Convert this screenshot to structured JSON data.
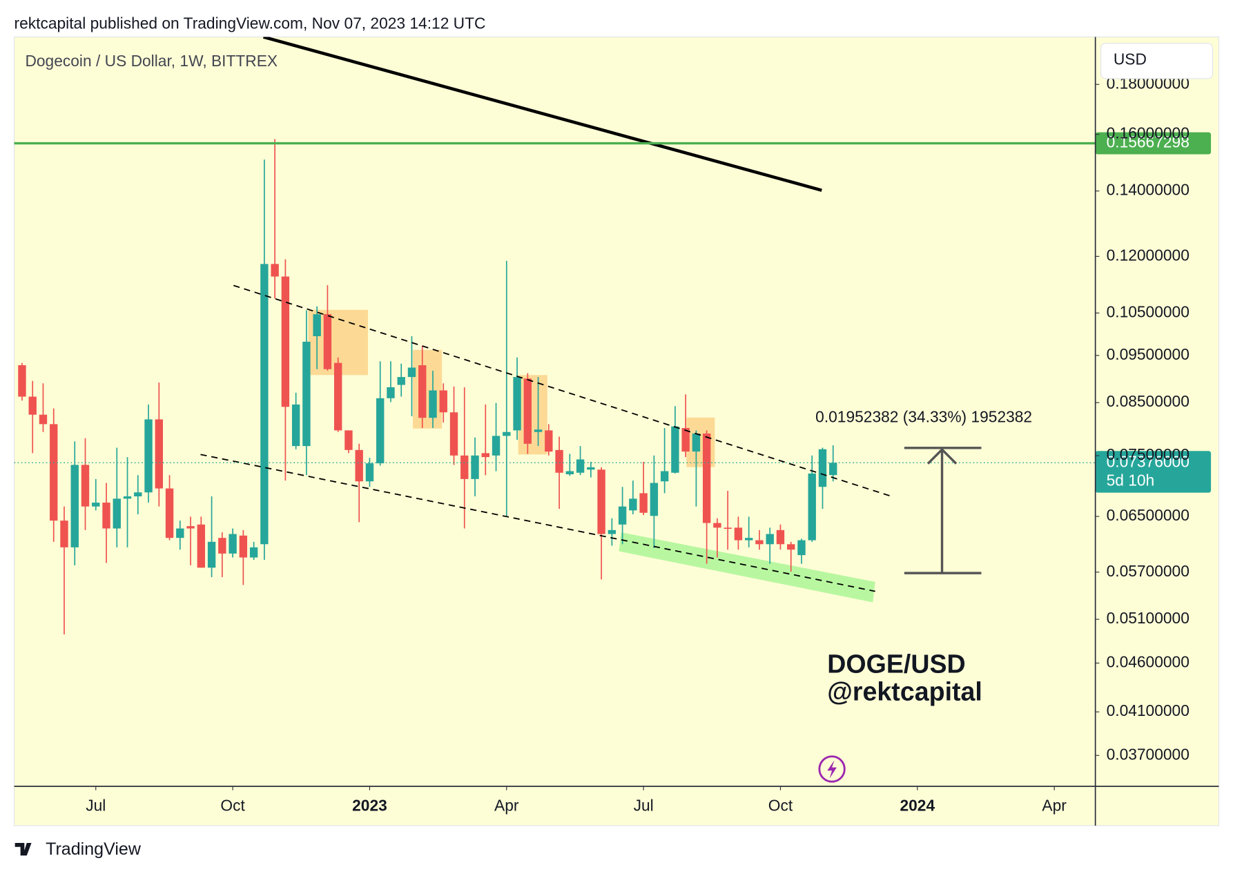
{
  "chart_data": {
    "type": "candlestick",
    "header": "rektcapital published on TradingView.com, Nov 07, 2023 14:12 UTC",
    "title": "Dogecoin / US Dollar, 1W, BITTREX",
    "currency": "USD",
    "log_scale": true,
    "grid": false,
    "up_color": "#26a69a",
    "down_color": "#ef5350",
    "xlim": [
      -0.75,
      101.9
    ],
    "xticks": [
      {
        "value": 7,
        "label": "Jul"
      },
      {
        "value": 20,
        "label": "Oct"
      },
      {
        "value": 33,
        "label": "2023"
      },
      {
        "value": 46,
        "label": "Apr"
      },
      {
        "value": 59,
        "label": "Jul"
      },
      {
        "value": 72,
        "label": "Oct"
      },
      {
        "value": 85,
        "label": "2024"
      },
      {
        "value": 98,
        "label": "Apr"
      }
    ],
    "ylim": [
      0.0344,
      0.2013
    ],
    "yticks": [
      {
        "value": 0.18,
        "label": "0.18000000"
      },
      {
        "value": 0.16,
        "label": "0.16000000"
      },
      {
        "value": 0.14,
        "label": "0.14000000"
      },
      {
        "value": 0.12,
        "label": "0.12000000"
      },
      {
        "value": 0.105,
        "label": "0.10500000"
      },
      {
        "value": 0.095,
        "label": "0.09500000"
      },
      {
        "value": 0.085,
        "label": "0.08500000"
      },
      {
        "value": 0.075,
        "label": "0.07500000"
      },
      {
        "value": 0.065,
        "label": "0.06500000"
      },
      {
        "value": 0.057,
        "label": "0.05700000"
      },
      {
        "value": 0.051,
        "label": "0.05100000"
      },
      {
        "value": 0.046,
        "label": "0.04600000"
      },
      {
        "value": 0.041,
        "label": "0.04100000"
      },
      {
        "value": 0.037,
        "label": "0.03700000"
      }
    ],
    "open": [
      0.09284,
      0.08621,
      0.08262,
      0.0808,
      0.06436,
      0.06043,
      0.0734,
      0.06654,
      0.06715,
      0.06318,
      0.06778,
      0.06815,
      0.06879,
      0.08171,
      0.06943,
      0.06179,
      0.06353,
      0.06377,
      0.0576,
      0.06179,
      0.05955,
      0.06213,
      0.059,
      0.06088,
      0.11787,
      0.11443,
      0.07673,
      0.07673,
      0.09941,
      0.1047,
      0.09335,
      0.07962,
      0.07602,
      0.0706,
      0.07367,
      0.08589,
      0.08863,
      0.09029,
      0.09284,
      0.08201,
      0.08749,
      0.08308,
      0.07504,
      0.07099,
      0.07546,
      0.07504,
      0.07859,
      0.07962,
      0.08996,
      0.07932,
      0.07962,
      0.07602,
      0.07179,
      0.07205,
      0.07258,
      0.07258,
      0.06236,
      0.06377,
      0.06593,
      0.06866,
      0.06508,
      0.0706,
      0.07205,
      0.08006,
      0.07574,
      0.07903,
      0.064,
      0.0633,
      0.0633,
      0.06145,
      0.06145,
      0.06088,
      0.06294,
      0.06088,
      0.05933,
      0.06145,
      0.06969,
      0.07165
    ],
    "high": [
      0.09335,
      0.08946,
      0.08896,
      0.08385,
      0.06654,
      0.07758,
      0.07816,
      0.07099,
      0.07034,
      0.07644,
      0.07476,
      0.07165,
      0.08463,
      0.08913,
      0.07165,
      0.06436,
      0.06496,
      0.06496,
      0.06815,
      0.0626,
      0.06318,
      0.06294,
      0.06122,
      0.15077,
      0.1582,
      0.11918,
      0.08701,
      0.10567,
      0.10666,
      0.11212,
      0.09456,
      0.07962,
      0.07715,
      0.07463,
      0.09369,
      0.09369,
      0.09318,
      0.09941,
      0.09723,
      0.09164,
      0.08896,
      0.0883,
      0.08814,
      0.0783,
      0.08463,
      0.08494,
      0.11874,
      0.09456,
      0.09113,
      0.09029,
      0.0808,
      0.07845,
      0.07532,
      0.07673,
      0.07394,
      0.07299,
      0.06472,
      0.06969,
      0.07073,
      0.07394,
      0.07504,
      0.08006,
      0.08431,
      0.08668,
      0.07962,
      0.07962,
      0.06472,
      0.06904,
      0.06496,
      0.06496,
      0.06294,
      0.0633,
      0.06377,
      0.06122,
      0.06168,
      0.07504,
      0.07644,
      0.07687
    ],
    "low": [
      0.08541,
      0.07546,
      0.07932,
      0.06122,
      0.04921,
      0.05792,
      0.06294,
      0.06593,
      0.05824,
      0.06043,
      0.06043,
      0.06532,
      0.06715,
      0.06654,
      0.06145,
      0.0601,
      0.05792,
      0.0576,
      0.05633,
      0.05633,
      0.059,
      0.0553,
      0.05867,
      0.05867,
      0.10864,
      0.07073,
      0.07616,
      0.07165,
      0.09198,
      0.09164,
      0.07932,
      0.07546,
      0.06412,
      0.06969,
      0.07326,
      0.0851,
      0.08621,
      0.08232,
      0.08006,
      0.08006,
      0.0811,
      0.0734,
      0.06318,
      0.06815,
      0.07165,
      0.07232,
      0.06508,
      0.07787,
      0.07532,
      0.07673,
      0.07504,
      0.06617,
      0.07152,
      0.07165,
      0.07126,
      0.05602,
      0.06066,
      0.06088,
      0.06532,
      0.0652,
      0.06032,
      0.06866,
      0.07192,
      0.07476,
      0.06654,
      0.05813,
      0.059,
      0.0601,
      0.0601,
      0.06043,
      0.0601,
      0.05813,
      0.0601,
      0.05707,
      0.05813,
      0.06122,
      0.06617,
      0.0706
    ],
    "close": [
      0.08621,
      0.08262,
      0.0808,
      0.06436,
      0.06043,
      0.0734,
      0.06654,
      0.06715,
      0.06318,
      0.06778,
      0.06815,
      0.06879,
      0.08171,
      0.06943,
      0.06179,
      0.06318,
      0.06318,
      0.0576,
      0.06122,
      0.05955,
      0.06236,
      0.059,
      0.06043,
      0.11787,
      0.11443,
      0.08416,
      0.08463,
      0.09813,
      0.1047,
      0.09198,
      0.07962,
      0.07602,
      0.0706,
      0.07367,
      0.08589,
      0.08814,
      0.09029,
      0.09232,
      0.08201,
      0.08749,
      0.08308,
      0.07504,
      0.07099,
      0.07504,
      0.07476,
      0.07859,
      0.07932,
      0.09029,
      0.07715,
      0.07977,
      0.07574,
      0.07205,
      0.07232,
      0.07435,
      0.07299,
      0.06236,
      0.06294,
      0.06654,
      0.06778,
      0.06556,
      0.07034,
      0.07232,
      0.08036,
      0.07574,
      0.07903,
      0.064,
      0.0633,
      0.06318,
      0.06145,
      0.06179,
      0.06088,
      0.06236,
      0.06088,
      0.0601,
      0.06145,
      0.07192,
      0.07616,
      0.07376
    ],
    "levels": [
      {
        "value": 0.15667298,
        "color": "#4caf50"
      }
    ],
    "last_price": {
      "value": 0.07376,
      "value_label": "0.07376000",
      "countdown": "5d 10h"
    },
    "measure": {
      "from": 0.05687,
      "to": 0.07639,
      "label": "0.01952382 (34.33%) 1952382"
    },
    "watermark": [
      "DOGE/USD",
      "@rektcapital"
    ],
    "footer": "TradingView"
  }
}
